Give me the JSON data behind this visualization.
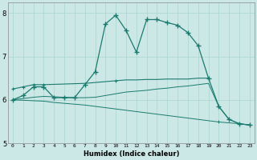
{
  "xlabel": "Humidex (Indice chaleur)",
  "bg_color": "#cce8e6",
  "line_color": "#1a7a6e",
  "grid_color": "#aad4d0",
  "xlim": [
    -0.5,
    23.5
  ],
  "ylim": [
    5.0,
    8.25
  ],
  "yticks": [
    5,
    6,
    7,
    8
  ],
  "xticks": [
    0,
    1,
    2,
    3,
    4,
    5,
    6,
    7,
    8,
    9,
    10,
    11,
    12,
    13,
    14,
    15,
    16,
    17,
    18,
    19,
    20,
    21,
    22,
    23
  ],
  "line1_x": [
    0,
    1,
    2,
    3,
    4,
    5,
    6,
    7,
    8,
    9,
    10,
    11,
    12,
    13,
    14,
    15,
    16,
    17,
    18,
    19,
    20,
    21,
    22,
    23
  ],
  "line1_y": [
    6.0,
    6.1,
    6.3,
    6.3,
    6.05,
    6.05,
    6.05,
    6.35,
    6.65,
    7.75,
    7.95,
    7.6,
    7.1,
    7.85,
    7.85,
    7.78,
    7.72,
    7.55,
    7.25,
    6.5,
    5.85,
    5.55,
    5.45,
    5.42
  ],
  "line2_x": [
    0,
    1,
    2,
    3,
    7,
    8,
    9,
    10,
    11,
    12,
    13,
    14,
    15,
    16,
    17,
    18,
    19
  ],
  "line2_y": [
    6.25,
    6.3,
    6.35,
    6.35,
    6.38,
    6.4,
    6.42,
    6.44,
    6.46,
    6.46,
    6.47,
    6.47,
    6.48,
    6.48,
    6.48,
    6.5,
    6.5
  ],
  "line3_x": [
    0,
    1,
    2,
    3,
    4,
    5,
    6,
    7,
    8,
    9,
    10,
    11,
    12,
    13,
    14,
    15,
    16,
    17,
    18,
    19,
    20,
    21,
    22,
    23
  ],
  "line3_y": [
    6.0,
    6.03,
    6.06,
    6.08,
    6.07,
    6.06,
    6.05,
    6.05,
    6.06,
    6.1,
    6.14,
    6.18,
    6.2,
    6.22,
    6.25,
    6.27,
    6.3,
    6.32,
    6.35,
    6.38,
    5.85,
    5.55,
    5.45,
    5.42
  ],
  "line4_x": [
    0,
    1,
    2,
    3,
    4,
    5,
    6,
    7,
    8,
    9,
    10,
    11,
    12,
    13,
    14,
    15,
    16,
    17,
    18,
    19,
    20,
    21,
    22,
    23
  ],
  "line4_y": [
    6.0,
    5.99,
    5.98,
    5.97,
    5.94,
    5.92,
    5.9,
    5.88,
    5.85,
    5.82,
    5.79,
    5.76,
    5.73,
    5.7,
    5.67,
    5.64,
    5.61,
    5.58,
    5.55,
    5.52,
    5.49,
    5.47,
    5.45,
    5.42
  ]
}
